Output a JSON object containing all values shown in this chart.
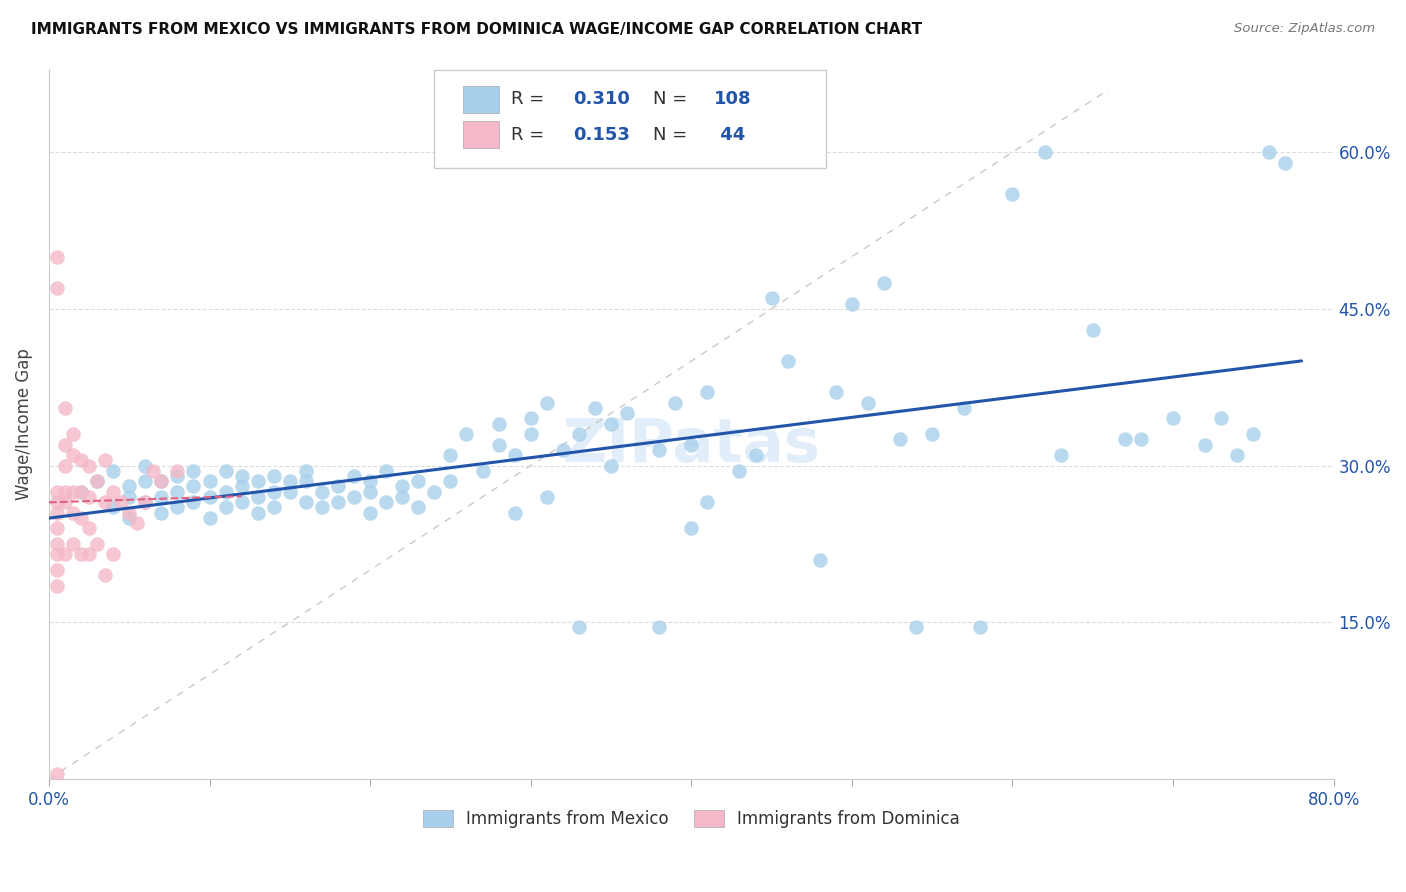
{
  "title": "IMMIGRANTS FROM MEXICO VS IMMIGRANTS FROM DOMINICA WAGE/INCOME GAP CORRELATION CHART",
  "source": "Source: ZipAtlas.com",
  "ylabel": "Wage/Income Gap",
  "xlim": [
    0.0,
    0.8
  ],
  "ylim": [
    0.0,
    0.68
  ],
  "ytick_positions": [
    0.15,
    0.3,
    0.45,
    0.6
  ],
  "ytick_labels": [
    "15.0%",
    "30.0%",
    "45.0%",
    "60.0%"
  ],
  "mexico_color": "#A8D0EC",
  "dominica_color": "#F5B8C8",
  "mexico_line_color": "#2255AA",
  "dominica_line_color": "#E06080",
  "diag_line_color": "#BBBBBB",
  "background_color": "#FFFFFF",
  "watermark": "ZIPatas",
  "mexico_x": [
    0.02,
    0.03,
    0.04,
    0.04,
    0.05,
    0.05,
    0.05,
    0.06,
    0.06,
    0.06,
    0.07,
    0.07,
    0.07,
    0.08,
    0.08,
    0.08,
    0.09,
    0.09,
    0.09,
    0.1,
    0.1,
    0.1,
    0.11,
    0.11,
    0.11,
    0.12,
    0.12,
    0.12,
    0.13,
    0.13,
    0.13,
    0.14,
    0.14,
    0.14,
    0.15,
    0.15,
    0.16,
    0.16,
    0.16,
    0.17,
    0.17,
    0.18,
    0.18,
    0.19,
    0.19,
    0.2,
    0.2,
    0.2,
    0.21,
    0.21,
    0.22,
    0.22,
    0.23,
    0.23,
    0.24,
    0.25,
    0.25,
    0.26,
    0.27,
    0.28,
    0.28,
    0.29,
    0.29,
    0.3,
    0.3,
    0.31,
    0.31,
    0.32,
    0.33,
    0.33,
    0.34,
    0.35,
    0.35,
    0.36,
    0.38,
    0.38,
    0.39,
    0.4,
    0.4,
    0.41,
    0.41,
    0.43,
    0.44,
    0.45,
    0.46,
    0.48,
    0.49,
    0.5,
    0.51,
    0.52,
    0.53,
    0.54,
    0.55,
    0.57,
    0.58,
    0.6,
    0.62,
    0.63,
    0.65,
    0.67,
    0.68,
    0.7,
    0.72,
    0.73,
    0.74,
    0.75,
    0.76,
    0.77
  ],
  "mexico_y": [
    0.275,
    0.285,
    0.26,
    0.295,
    0.28,
    0.27,
    0.25,
    0.265,
    0.285,
    0.3,
    0.27,
    0.285,
    0.255,
    0.29,
    0.275,
    0.26,
    0.28,
    0.265,
    0.295,
    0.27,
    0.285,
    0.25,
    0.275,
    0.295,
    0.26,
    0.28,
    0.265,
    0.29,
    0.27,
    0.285,
    0.255,
    0.275,
    0.26,
    0.29,
    0.275,
    0.285,
    0.265,
    0.285,
    0.295,
    0.275,
    0.26,
    0.28,
    0.265,
    0.27,
    0.29,
    0.275,
    0.255,
    0.285,
    0.295,
    0.265,
    0.28,
    0.27,
    0.285,
    0.26,
    0.275,
    0.31,
    0.285,
    0.33,
    0.295,
    0.32,
    0.34,
    0.31,
    0.255,
    0.33,
    0.345,
    0.36,
    0.27,
    0.315,
    0.145,
    0.33,
    0.355,
    0.3,
    0.34,
    0.35,
    0.145,
    0.315,
    0.36,
    0.32,
    0.24,
    0.37,
    0.265,
    0.295,
    0.31,
    0.46,
    0.4,
    0.21,
    0.37,
    0.455,
    0.36,
    0.475,
    0.325,
    0.145,
    0.33,
    0.355,
    0.145,
    0.56,
    0.6,
    0.31,
    0.43,
    0.325,
    0.325,
    0.345,
    0.32,
    0.345,
    0.31,
    0.33,
    0.6,
    0.59
  ],
  "dominica_x": [
    0.005,
    0.005,
    0.005,
    0.005,
    0.005,
    0.005,
    0.005,
    0.005,
    0.005,
    0.005,
    0.005,
    0.01,
    0.01,
    0.01,
    0.01,
    0.01,
    0.01,
    0.015,
    0.015,
    0.015,
    0.015,
    0.015,
    0.02,
    0.02,
    0.02,
    0.02,
    0.025,
    0.025,
    0.025,
    0.025,
    0.03,
    0.03,
    0.035,
    0.035,
    0.035,
    0.04,
    0.04,
    0.045,
    0.05,
    0.055,
    0.06,
    0.065,
    0.07,
    0.08
  ],
  "dominica_y": [
    0.5,
    0.47,
    0.275,
    0.265,
    0.255,
    0.24,
    0.225,
    0.215,
    0.2,
    0.185,
    0.005,
    0.355,
    0.32,
    0.3,
    0.275,
    0.265,
    0.215,
    0.33,
    0.31,
    0.275,
    0.255,
    0.225,
    0.305,
    0.275,
    0.25,
    0.215,
    0.3,
    0.27,
    0.24,
    0.215,
    0.285,
    0.225,
    0.305,
    0.265,
    0.195,
    0.275,
    0.215,
    0.265,
    0.255,
    0.245,
    0.265,
    0.295,
    0.285,
    0.295
  ]
}
